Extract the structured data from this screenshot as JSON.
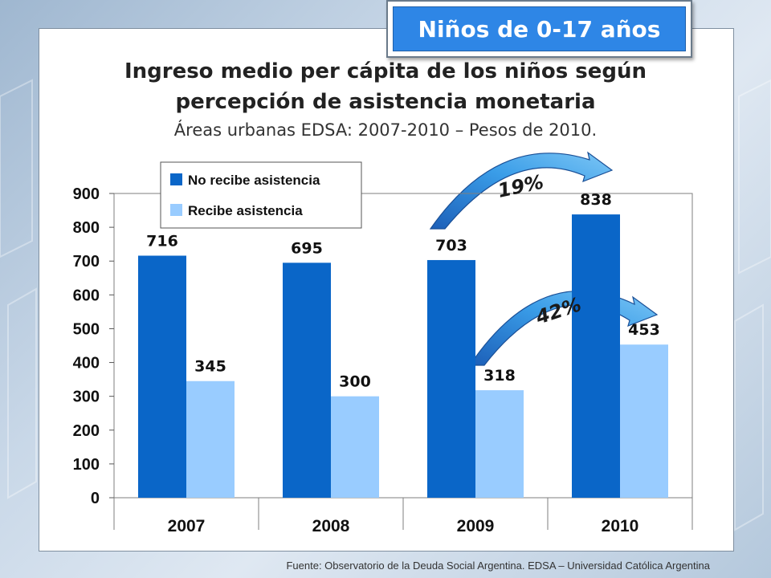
{
  "badge": "Niños de 0-17 años",
  "title_line1": "Ingreso medio per cápita de los niños según",
  "title_line2": "percepción de asistencia monetaria",
  "subtitle": "Áreas urbanas EDSA: 2007-2010 – Pesos de 2010.",
  "source": "Fuente: Observatorio de  la Deuda Social Argentina. EDSA – Universidad Católica Argentina",
  "colors": {
    "dark_blue": "#0a66c8",
    "light_blue": "#99ccff",
    "badge_blue": "#2e86e6"
  },
  "chart_data": {
    "type": "bar",
    "categories": [
      "2007",
      "2008",
      "2009",
      "2010"
    ],
    "series": [
      {
        "name": "No recibe asistencia",
        "values": [
          716,
          695,
          703,
          838
        ],
        "color": "#0a66c8"
      },
      {
        "name": "Recibe asistencia",
        "values": [
          345,
          300,
          318,
          453
        ],
        "color": "#99ccff"
      }
    ],
    "ylim": [
      0,
      900
    ],
    "yticks": [
      0,
      100,
      200,
      300,
      400,
      500,
      600,
      700,
      800,
      900
    ],
    "grid": false,
    "legend": "top-left",
    "annotations": [
      {
        "text": "19%",
        "series": "No recibe asistencia",
        "from": "2009",
        "to": "2010"
      },
      {
        "text": "42%",
        "series": "Recibe asistencia",
        "from": "2009",
        "to": "2010"
      }
    ]
  }
}
